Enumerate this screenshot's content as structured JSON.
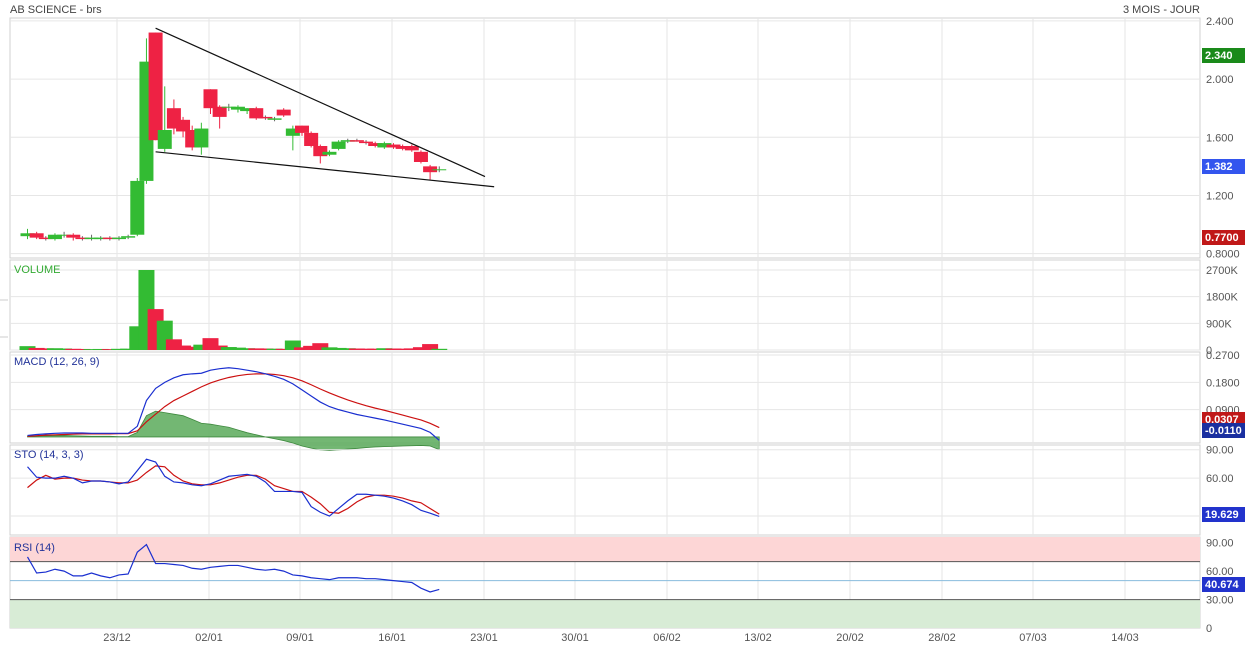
{
  "header": {
    "title": "AB SCIENCE - brs",
    "timeframe": "3 MOIS - JOUR"
  },
  "colors": {
    "up": "#33bb33",
    "down": "#ee2244",
    "macd": "#1a2fd0",
    "signal": "#cc1111",
    "hist": "#5aaa5a",
    "badge_green": "#1a8a1a",
    "badge_red": "#c01818",
    "badge_blue": "#2233cc",
    "rsi_over": "#fdd6d6",
    "rsi_under": "#d8ecd6"
  },
  "chart_data": {
    "type": "candlestick",
    "x_ticks": [
      "23/12",
      "02/01",
      "09/01",
      "16/01",
      "23/01",
      "30/01",
      "06/02",
      "13/02",
      "20/02",
      "28/02",
      "07/03",
      "14/03"
    ],
    "price": {
      "y_ticks": [
        "2.400",
        "2.000",
        "1.600",
        "1.200",
        "0.8000"
      ],
      "ylim": [
        0.77,
        2.42
      ],
      "last_badge": "2.340",
      "current_badge": "1.382",
      "low_badge": "0.7700",
      "candles": [
        [
          0.92,
          0.97,
          0.9,
          0.94
        ],
        [
          0.94,
          0.95,
          0.9,
          0.91
        ],
        [
          0.91,
          0.92,
          0.89,
          0.9
        ],
        [
          0.9,
          0.94,
          0.89,
          0.93
        ],
        [
          0.93,
          0.95,
          0.91,
          0.93
        ],
        [
          0.93,
          0.94,
          0.89,
          0.91
        ],
        [
          0.91,
          0.92,
          0.89,
          0.9
        ],
        [
          0.9,
          0.93,
          0.89,
          0.91
        ],
        [
          0.9,
          0.92,
          0.89,
          0.91
        ],
        [
          0.91,
          0.92,
          0.89,
          0.9
        ],
        [
          0.9,
          0.92,
          0.89,
          0.91
        ],
        [
          0.91,
          0.93,
          0.9,
          0.92
        ],
        [
          0.93,
          1.32,
          0.92,
          1.3
        ],
        [
          1.3,
          2.28,
          1.28,
          2.12
        ],
        [
          2.32,
          2.32,
          1.58,
          1.58
        ],
        [
          1.52,
          1.95,
          1.5,
          1.65
        ],
        [
          1.8,
          1.86,
          1.62,
          1.66
        ],
        [
          1.72,
          1.74,
          1.6,
          1.64
        ],
        [
          1.65,
          1.68,
          1.51,
          1.53
        ],
        [
          1.53,
          1.7,
          1.48,
          1.66
        ],
        [
          1.93,
          1.93,
          1.76,
          1.8
        ],
        [
          1.81,
          1.82,
          1.66,
          1.74
        ],
        [
          1.81,
          1.83,
          1.78,
          1.81
        ],
        [
          1.79,
          1.82,
          1.77,
          1.81
        ],
        [
          1.78,
          1.8,
          1.76,
          1.8
        ],
        [
          1.8,
          1.81,
          1.72,
          1.73
        ],
        [
          1.74,
          1.75,
          1.72,
          1.73
        ],
        [
          1.72,
          1.74,
          1.71,
          1.73
        ],
        [
          1.79,
          1.8,
          1.74,
          1.75
        ],
        [
          1.61,
          1.68,
          1.51,
          1.66
        ],
        [
          1.68,
          1.68,
          1.61,
          1.63
        ],
        [
          1.63,
          1.64,
          1.53,
          1.54
        ],
        [
          1.54,
          1.55,
          1.42,
          1.47
        ],
        [
          1.48,
          1.51,
          1.47,
          1.5
        ],
        [
          1.52,
          1.58,
          1.51,
          1.57
        ],
        [
          1.57,
          1.59,
          1.56,
          1.58
        ],
        [
          1.58,
          1.59,
          1.57,
          1.57
        ],
        [
          1.57,
          1.58,
          1.55,
          1.56
        ],
        [
          1.56,
          1.57,
          1.53,
          1.54
        ],
        [
          1.53,
          1.57,
          1.52,
          1.56
        ],
        [
          1.55,
          1.56,
          1.52,
          1.53
        ],
        [
          1.54,
          1.55,
          1.51,
          1.52
        ],
        [
          1.54,
          1.55,
          1.5,
          1.51
        ],
        [
          1.5,
          1.51,
          1.42,
          1.43
        ],
        [
          1.4,
          1.41,
          1.31,
          1.36
        ],
        [
          1.38,
          1.4,
          1.36,
          1.38
        ]
      ],
      "trendlines": [
        {
          "from": [
            14,
            2.35
          ],
          "to": [
            50,
            1.33
          ]
        },
        {
          "from": [
            14,
            1.5
          ],
          "to": [
            51,
            1.26
          ]
        }
      ]
    },
    "volume": {
      "title": "VOLUME",
      "y_ticks": [
        "2700K",
        "1800K",
        "900K",
        "0"
      ],
      "ylim": [
        0,
        2700
      ],
      "values": [
        130,
        70,
        55,
        60,
        50,
        40,
        35,
        30,
        35,
        30,
        40,
        45,
        800,
        2700,
        1380,
        990,
        360,
        150,
        110,
        180,
        400,
        150,
        100,
        80,
        60,
        55,
        50,
        45,
        40,
        320,
        90,
        140,
        230,
        90,
        70,
        60,
        50,
        45,
        45,
        60,
        50,
        45,
        55,
        95,
        200,
        40
      ]
    },
    "macd": {
      "title": "MACD (12, 26, 9)",
      "y_ticks": [
        "0.2700",
        "0.1800",
        "0.0900"
      ],
      "ylim": [
        -0.02,
        0.28
      ],
      "signal_badge": "0.0307",
      "macd_badge": "-0.0110",
      "macd_line": [
        0.005,
        0.008,
        0.01,
        0.012,
        0.013,
        0.013,
        0.013,
        0.012,
        0.012,
        0.012,
        0.012,
        0.012,
        0.035,
        0.12,
        0.16,
        0.18,
        0.195,
        0.205,
        0.208,
        0.21,
        0.22,
        0.225,
        0.228,
        0.225,
        0.22,
        0.215,
        0.208,
        0.2,
        0.19,
        0.175,
        0.155,
        0.135,
        0.115,
        0.1,
        0.09,
        0.082,
        0.074,
        0.068,
        0.062,
        0.056,
        0.049,
        0.042,
        0.035,
        0.028,
        0.015,
        -0.011
      ],
      "signal_line": [
        0.002,
        0.004,
        0.006,
        0.007,
        0.008,
        0.009,
        0.01,
        0.01,
        0.01,
        0.01,
        0.011,
        0.011,
        0.02,
        0.05,
        0.075,
        0.1,
        0.12,
        0.135,
        0.15,
        0.165,
        0.178,
        0.188,
        0.196,
        0.202,
        0.206,
        0.208,
        0.208,
        0.206,
        0.202,
        0.195,
        0.185,
        0.172,
        0.158,
        0.145,
        0.133,
        0.122,
        0.112,
        0.103,
        0.095,
        0.088,
        0.08,
        0.072,
        0.064,
        0.056,
        0.045,
        0.031
      ],
      "histogram": [
        0.003,
        0.004,
        0.004,
        0.005,
        0.005,
        0.004,
        0.003,
        0.002,
        0.002,
        0.002,
        0.001,
        0.001,
        0.015,
        0.07,
        0.085,
        0.08,
        0.075,
        0.07,
        0.058,
        0.045,
        0.042,
        0.037,
        0.032,
        0.023,
        0.014,
        0.007,
        0.0,
        -0.006,
        -0.012,
        -0.02,
        -0.03,
        -0.037,
        -0.043,
        -0.045,
        -0.043,
        -0.04,
        -0.038,
        -0.035,
        -0.033,
        -0.032,
        -0.031,
        -0.03,
        -0.029,
        -0.028,
        -0.03,
        -0.042
      ]
    },
    "sto": {
      "title": "STO (14, 3, 3)",
      "y_ticks": [
        "90.00",
        "60.00"
      ],
      "ylim": [
        0,
        95
      ],
      "badge": "19.629",
      "k_line": [
        72,
        61,
        60,
        60,
        62,
        60,
        55,
        57,
        57,
        56,
        54,
        56,
        68,
        80,
        77,
        62,
        56,
        55,
        53,
        52,
        54,
        58,
        62,
        63,
        64,
        62,
        56,
        46,
        46,
        46,
        45,
        30,
        24,
        20,
        28,
        36,
        43,
        43,
        42,
        41,
        39,
        36,
        32,
        26,
        23,
        19.6
      ],
      "d_line": [
        50,
        58,
        63,
        59,
        60,
        60,
        58,
        57,
        57,
        56,
        55,
        55,
        58,
        66,
        73,
        72,
        63,
        57,
        54,
        53,
        53,
        55,
        58,
        61,
        63,
        63,
        59,
        52,
        49,
        46,
        46,
        40,
        33,
        24,
        23,
        28,
        35,
        40,
        42,
        42,
        41,
        39,
        36,
        34,
        28,
        22
      ]
    },
    "rsi": {
      "title": "RSI (14)",
      "y_ticks": [
        "90.00",
        "60.00",
        "30.00",
        "0"
      ],
      "ylim": [
        0,
        96
      ],
      "badge": "40.674",
      "overbought": 70,
      "oversold": 30,
      "values": [
        75,
        58,
        59,
        62,
        60,
        55,
        55,
        58,
        55,
        53,
        56,
        57,
        80,
        88,
        68,
        68,
        67,
        66,
        63,
        62,
        64,
        65,
        66,
        66,
        64,
        62,
        61,
        62,
        60,
        56,
        55,
        53,
        52,
        51,
        53,
        53,
        53,
        52,
        52,
        51,
        50,
        49,
        48,
        42,
        38,
        40.7
      ]
    }
  }
}
